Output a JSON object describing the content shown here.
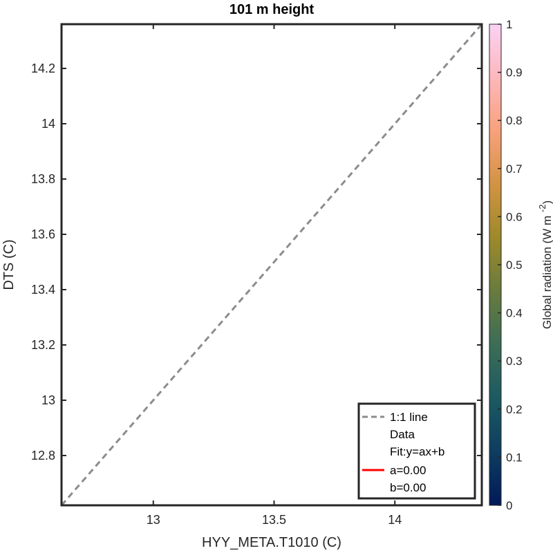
{
  "chart_data": {
    "type": "scatter",
    "title": "101 m height",
    "xlabel": "HYY_META.T1010 (C)",
    "ylabel": "DTS (C)",
    "xlim": [
      12.62,
      14.36
    ],
    "ylim": [
      12.62,
      14.36
    ],
    "xticks": [
      13,
      13.5,
      14
    ],
    "xtick_labels": [
      "13",
      "13.5",
      "14"
    ],
    "yticks": [
      12.8,
      13,
      13.2,
      13.4,
      13.6,
      13.8,
      14,
      14.2
    ],
    "ytick_labels": [
      "12.8",
      "13",
      "13.2",
      "13.4",
      "13.6",
      "13.8",
      "14",
      "14.2"
    ],
    "grid": false,
    "series": [
      {
        "name": "1:1 line",
        "style": "dashed",
        "color": "#8c8c8c",
        "x": [
          12.62,
          14.36
        ],
        "y": [
          12.62,
          14.36
        ]
      },
      {
        "name": "Data",
        "x": [],
        "y": []
      },
      {
        "name": "a=0.00",
        "color": "#ff0000",
        "x": [],
        "y": []
      }
    ],
    "legend": {
      "placement": "bottom-right",
      "entries": [
        {
          "label": "1:1 line",
          "marker": "dashed",
          "color": "#8c8c8c"
        },
        {
          "label": "Data",
          "marker": "none"
        },
        {
          "label": "Fit:y=ax+b",
          "marker": "none"
        },
        {
          "label": "a=0.00",
          "marker": "solid",
          "color": "#ff0000"
        },
        {
          "label": "b=0.00",
          "marker": "none"
        }
      ]
    },
    "colorbar": {
      "label": "Global radiation (W m",
      "label_superscript": "-2",
      "label_close": ")",
      "range": [
        0,
        1
      ],
      "ticks": [
        0,
        0.1,
        0.2,
        0.3,
        0.4,
        0.5,
        0.6,
        0.7,
        0.8,
        0.9,
        1
      ],
      "tick_labels": [
        "0",
        "0.1",
        "0.2",
        "0.3",
        "0.4",
        "0.5",
        "0.6",
        "0.7",
        "0.8",
        "0.9",
        "1"
      ],
      "colormap": "batlow",
      "colors": [
        "#011959",
        "#0e3d60",
        "#1c5a62",
        "#3c6d56",
        "#687b3e",
        "#9d892b",
        "#d29343",
        "#f8a17b",
        "#fdb7bc",
        "#fad2f4"
      ]
    }
  }
}
